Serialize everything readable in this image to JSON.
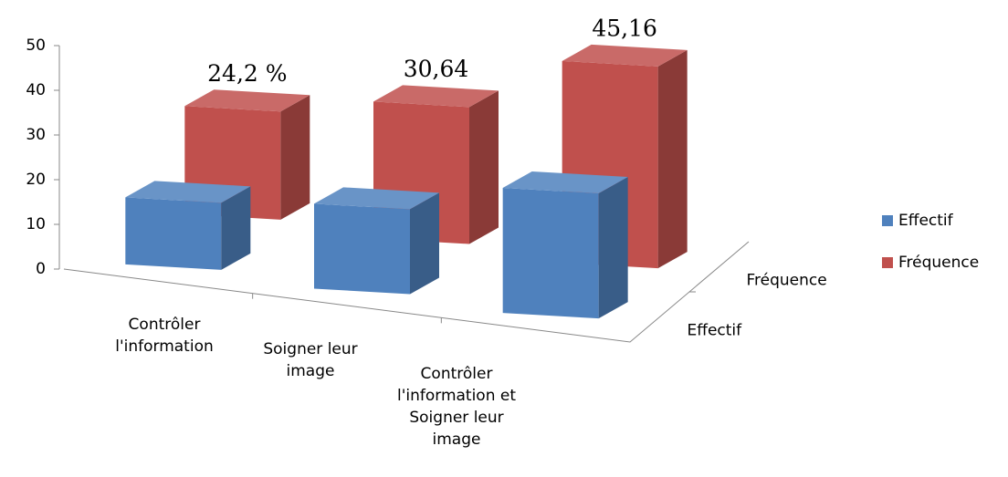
{
  "chart_data": {
    "type": "bar3d",
    "categories": [
      "Contrôler l'information",
      "Soigner leur image",
      "Contrôler l'information et Soigner leur image"
    ],
    "series": [
      {
        "name": "Effectif",
        "color": "#4f81bd",
        "values": [
          15,
          19,
          28
        ]
      },
      {
        "name": "Fréquence",
        "color": "#c0504d",
        "values": [
          24.2,
          30.64,
          45.16
        ],
        "value_labels": [
          "24,2 %",
          "30,64",
          "45,16"
        ]
      }
    ],
    "ylim": [
      0,
      50
    ],
    "yticks": [
      0,
      10,
      20,
      30,
      40,
      50
    ],
    "grid": false,
    "legend": "right"
  }
}
